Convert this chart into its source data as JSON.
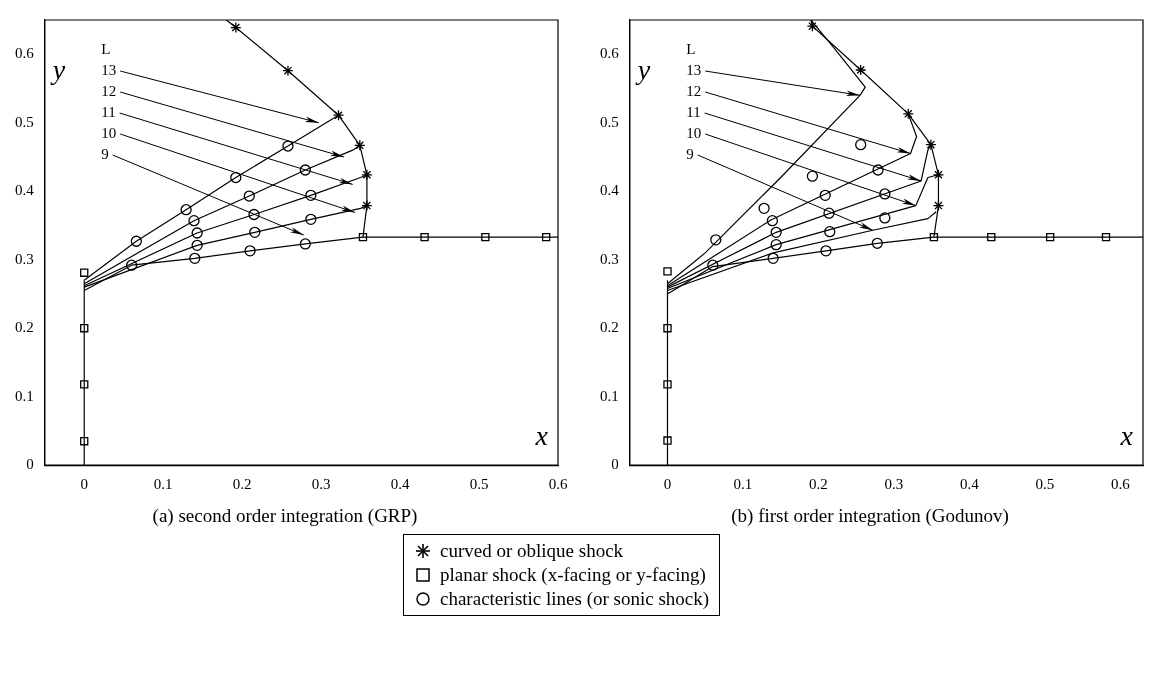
{
  "chart_data": [
    {
      "type": "line",
      "title": "(a) second order integration (GRP)",
      "xlabel": "x",
      "ylabel": "y",
      "xlim": [
        -0.05,
        0.6
      ],
      "ylim": [
        0,
        0.65
      ],
      "xticks": [
        0,
        0.1,
        0.2,
        0.3,
        0.4,
        0.5,
        0.6
      ],
      "yticks": [
        0,
        0.1,
        0.2,
        0.3,
        0.4,
        0.5,
        0.6
      ],
      "grid": false,
      "legend": "bottom",
      "series": [
        {
          "type": "line",
          "color": "#000000",
          "marker": "none",
          "x": [
            0,
            0.066,
            0.129,
            0.192,
            0.258,
            0.322
          ],
          "values": [
            0.27,
            0.327,
            0.373,
            0.42,
            0.466,
            0.511
          ]
        },
        {
          "type": "line",
          "color": "#000000",
          "marker": "none",
          "x": [
            0,
            0.139,
            0.209,
            0.28,
            0.34,
            0.349
          ],
          "values": [
            0.265,
            0.357,
            0.393,
            0.431,
            0.46,
            0.467
          ]
        },
        {
          "type": "line",
          "color": "#000000",
          "marker": "none",
          "x": [
            0,
            0.143,
            0.215,
            0.287,
            0.35,
            0.358
          ],
          "values": [
            0.262,
            0.339,
            0.366,
            0.394,
            0.42,
            0.424
          ]
        },
        {
          "type": "line",
          "color": "#000000",
          "marker": "none",
          "x": [
            0,
            0.143,
            0.216,
            0.287,
            0.35,
            0.358
          ],
          "values": [
            0.26,
            0.321,
            0.34,
            0.359,
            0.375,
            0.379
          ]
        },
        {
          "type": "line",
          "color": "#000000",
          "marker": "none",
          "x": [
            0,
            0.06,
            0.14,
            0.21,
            0.28,
            0.353,
            0.6
          ],
          "values": [
            0.255,
            0.292,
            0.302,
            0.313,
            0.323,
            0.333,
            0.333
          ]
        },
        {
          "type": "line",
          "color": "#000000",
          "marker": "none",
          "x": [
            0.18,
            0.192,
            0.258,
            0.322,
            0.349,
            0.358,
            0.358,
            0.353
          ],
          "values": [
            0.65,
            0.639,
            0.576,
            0.511,
            0.467,
            0.424,
            0.379,
            0.333
          ]
        },
        {
          "type": "line",
          "color": "#000000",
          "marker": "none",
          "x": [
            0,
            0
          ],
          "values": [
            0,
            0.27
          ]
        },
        {
          "type": "scatter",
          "name": "curved or oblique shock",
          "color": "#000000",
          "marker": "cross",
          "x": [
            0.192,
            0.258,
            0.322,
            0.349,
            0.358,
            0.358
          ],
          "values": [
            0.639,
            0.576,
            0.511,
            0.467,
            0.424,
            0.379
          ]
        },
        {
          "type": "scatter",
          "name": "planar shock (x-facing or y-facing)",
          "color": "#000000",
          "marker": "square",
          "x": [
            0.353,
            0.431,
            0.508,
            0.585,
            0,
            0,
            0,
            0
          ],
          "values": [
            0.333,
            0.333,
            0.333,
            0.333,
            0.281,
            0.2,
            0.118,
            0.035
          ]
        },
        {
          "type": "scatter",
          "name": "characteristic lines (or sonic shock)",
          "color": "#000000",
          "marker": "circle",
          "x": [
            0.066,
            0.129,
            0.139,
            0.143,
            0.143,
            0.192,
            0.209,
            0.215,
            0.216,
            0.258,
            0.28,
            0.287,
            0.287,
            0.06,
            0.14,
            0.21,
            0.28
          ],
          "values": [
            0.327,
            0.373,
            0.357,
            0.339,
            0.321,
            0.42,
            0.393,
            0.366,
            0.34,
            0.466,
            0.431,
            0.394,
            0.359,
            0.292,
            0.302,
            0.313,
            0.323
          ]
        }
      ],
      "annotations": [
        "L",
        {
          "text": "13",
          "x": 0.297,
          "y": 0.5
        },
        {
          "text": "12",
          "x": 0.329,
          "y": 0.45
        },
        {
          "text": "11",
          "x": 0.34,
          "y": 0.41
        },
        {
          "text": "10",
          "x": 0.343,
          "y": 0.369
        },
        {
          "text": "9",
          "x": 0.278,
          "y": 0.336
        }
      ]
    },
    {
      "type": "line",
      "title": "(b) first order integration (Godunov)",
      "xlabel": "x",
      "ylabel": "y",
      "xlim": [
        -0.05,
        0.63
      ],
      "ylim": [
        0,
        0.65
      ],
      "xticks": [
        0,
        0.1,
        0.2,
        0.3,
        0.4,
        0.5,
        0.6
      ],
      "yticks": [
        0,
        0.1,
        0.2,
        0.3,
        0.4,
        0.5,
        0.6
      ],
      "grid": false,
      "series": [
        {
          "type": "line",
          "color": "#000000",
          "marker": "none",
          "x": [
            0,
            0.05,
            0.15,
            0.255,
            0.262,
            0.22,
            0.19
          ],
          "values": [
            0.265,
            0.31,
            0.42,
            0.54,
            0.552,
            0.61,
            0.65
          ]
        },
        {
          "type": "line",
          "color": "#000000",
          "marker": "none",
          "x": [
            0,
            0.137,
            0.322,
            0.33,
            0.319
          ],
          "values": [
            0.262,
            0.358,
            0.455,
            0.48,
            0.513
          ]
        },
        {
          "type": "line",
          "color": "#000000",
          "marker": "none",
          "x": [
            0,
            0.144,
            0.336,
            0.345,
            0.349
          ],
          "values": [
            0.26,
            0.34,
            0.415,
            0.46,
            0.468
          ]
        },
        {
          "type": "line",
          "color": "#000000",
          "marker": "none",
          "x": [
            0,
            0.144,
            0.329,
            0.345,
            0.359
          ],
          "values": [
            0.258,
            0.322,
            0.379,
            0.42,
            0.424
          ]
        },
        {
          "type": "line",
          "color": "#000000",
          "marker": "none",
          "x": [
            0,
            0.06,
            0.14,
            0.21,
            0.278,
            0.353,
            0.63
          ],
          "values": [
            0.25,
            0.29,
            0.302,
            0.313,
            0.324,
            0.333,
            0.333
          ]
        },
        {
          "type": "line",
          "color": "#000000",
          "marker": "none",
          "x": [
            0.19,
            0.192,
            0.256,
            0.319,
            0.349,
            0.359,
            0.359,
            0.353
          ],
          "values": [
            0.65,
            0.641,
            0.577,
            0.513,
            0.468,
            0.424,
            0.379,
            0.333
          ]
        },
        {
          "type": "line",
          "color": "#000000",
          "marker": "none",
          "x": [
            0,
            0
          ],
          "values": [
            0,
            0.27
          ]
        },
        {
          "type": "line",
          "color": "#000000",
          "marker": "none",
          "x": [
            0,
            0.14,
            0.272,
            0.345,
            0.356
          ],
          "values": [
            0.255,
            0.31,
            0.343,
            0.36,
            0.37
          ]
        },
        {
          "type": "scatter",
          "color": "#000000",
          "marker": "cross",
          "x": [
            0.192,
            0.256,
            0.319,
            0.349,
            0.359,
            0.359
          ],
          "values": [
            0.641,
            0.577,
            0.513,
            0.468,
            0.424,
            0.379
          ]
        },
        {
          "type": "scatter",
          "color": "#000000",
          "marker": "square",
          "x": [
            0.353,
            0.429,
            0.507,
            0.581,
            0,
            0,
            0,
            0
          ],
          "values": [
            0.333,
            0.333,
            0.333,
            0.333,
            0.283,
            0.2,
            0.118,
            0.036
          ]
        },
        {
          "type": "scatter",
          "color": "#000000",
          "marker": "circle",
          "x": [
            0.064,
            0.128,
            0.139,
            0.144,
            0.144,
            0.192,
            0.209,
            0.214,
            0.215,
            0.256,
            0.279,
            0.288,
            0.288,
            0.06,
            0.14,
            0.21,
            0.278
          ],
          "values": [
            0.329,
            0.375,
            0.357,
            0.34,
            0.322,
            0.422,
            0.394,
            0.368,
            0.341,
            0.468,
            0.431,
            0.396,
            0.361,
            0.292,
            0.302,
            0.313,
            0.324
          ]
        }
      ],
      "annotations": [
        "L",
        {
          "text": "13",
          "x": 0.255,
          "y": 0.54
        },
        {
          "text": "12",
          "x": 0.322,
          "y": 0.455
        },
        {
          "text": "11",
          "x": 0.336,
          "y": 0.415
        },
        {
          "text": "10",
          "x": 0.329,
          "y": 0.379
        },
        {
          "text": "9",
          "x": 0.272,
          "y": 0.343
        }
      ]
    }
  ]
}
